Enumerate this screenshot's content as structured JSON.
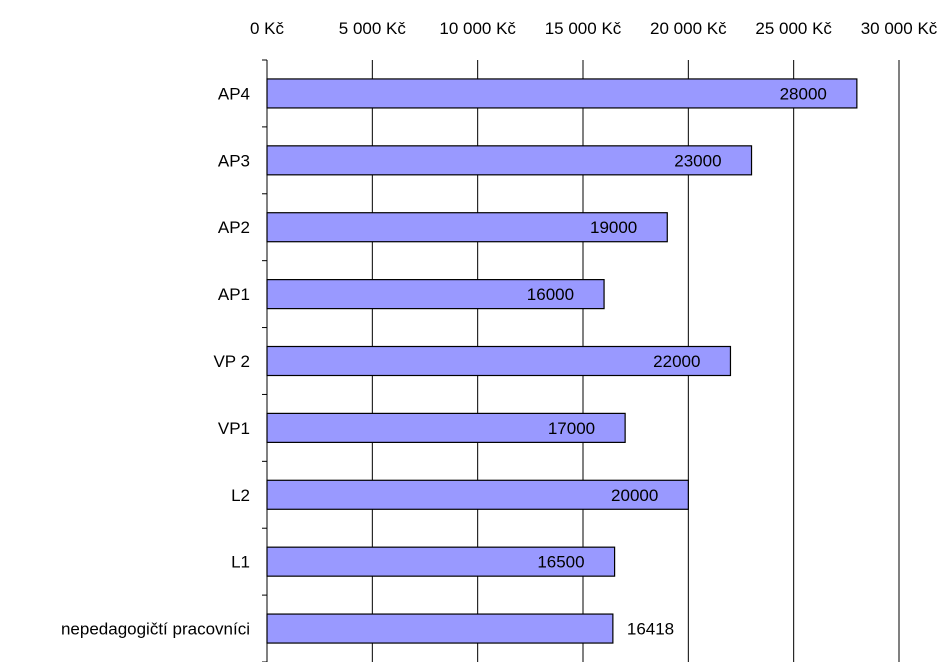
{
  "chart_data": {
    "type": "bar",
    "orientation": "horizontal",
    "x_axis_position": "top",
    "categories": [
      "AP4",
      "AP3",
      "AP2",
      "AP1",
      "VP 2",
      "VP1",
      "L2",
      "L1",
      "nepedagogičtí pracovníci"
    ],
    "values": [
      28000,
      23000,
      19000,
      16000,
      22000,
      17000,
      20000,
      16500,
      16418
    ],
    "data_labels": [
      "28000",
      "23000",
      "19000",
      "16000",
      "22000",
      "17000",
      "20000",
      "16500",
      "16418"
    ],
    "x_ticks": [
      0,
      5000,
      10000,
      15000,
      20000,
      25000,
      30000
    ],
    "x_tick_labels": [
      "0 Kč",
      "5 000 Kč",
      "10 000 Kč",
      "15 000 Kč",
      "20 000 Kč",
      "25 000 Kč",
      "30 000 Kč"
    ],
    "xlim": [
      0,
      30000
    ],
    "grid": true,
    "legend": "none",
    "colors": {
      "bar": "#9999ff",
      "bar_border": "#000000",
      "grid": "#000000",
      "background": "#ffffff"
    }
  }
}
